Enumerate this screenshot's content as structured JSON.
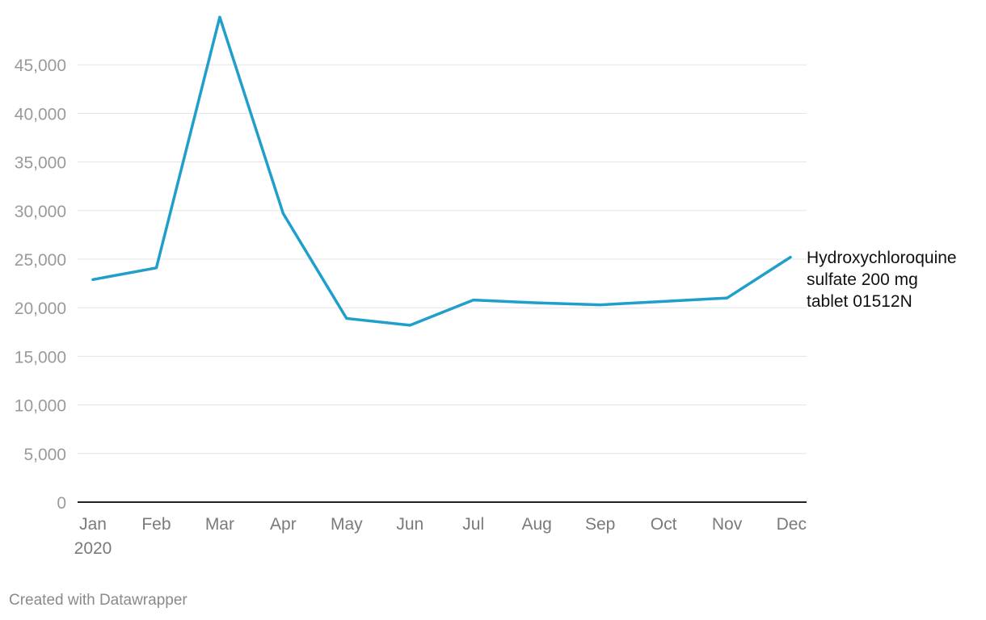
{
  "chart_data": {
    "type": "line",
    "categories": [
      "Jan",
      "Feb",
      "Mar",
      "Apr",
      "May",
      "Jun",
      "Jul",
      "Aug",
      "Sep",
      "Oct",
      "Nov",
      "Dec"
    ],
    "year_label": "2020",
    "series": [
      {
        "name": "Hydroxychloroquine sulfate 200 mg tablet 01512N",
        "label_lines": [
          "Hydroxychloroquine",
          "sulfate 200 mg",
          "tablet 01512N"
        ],
        "color": "#1f9fc9",
        "values": [
          22900,
          24100,
          49900,
          29700,
          18900,
          18200,
          20800,
          20500,
          20300,
          20650,
          21000,
          25200
        ]
      }
    ],
    "yticks": [
      0,
      5000,
      10000,
      15000,
      20000,
      25000,
      30000,
      35000,
      40000,
      45000
    ],
    "ytick_labels": [
      "0",
      "5,000",
      "10,000",
      "15,000",
      "20,000",
      "25,000",
      "30,000",
      "35,000",
      "40,000",
      "45,000"
    ],
    "ylim": [
      0,
      50000
    ],
    "grid": true,
    "legend": "direct label at line end"
  },
  "footer": {
    "credit": "Created with Datawrapper"
  }
}
